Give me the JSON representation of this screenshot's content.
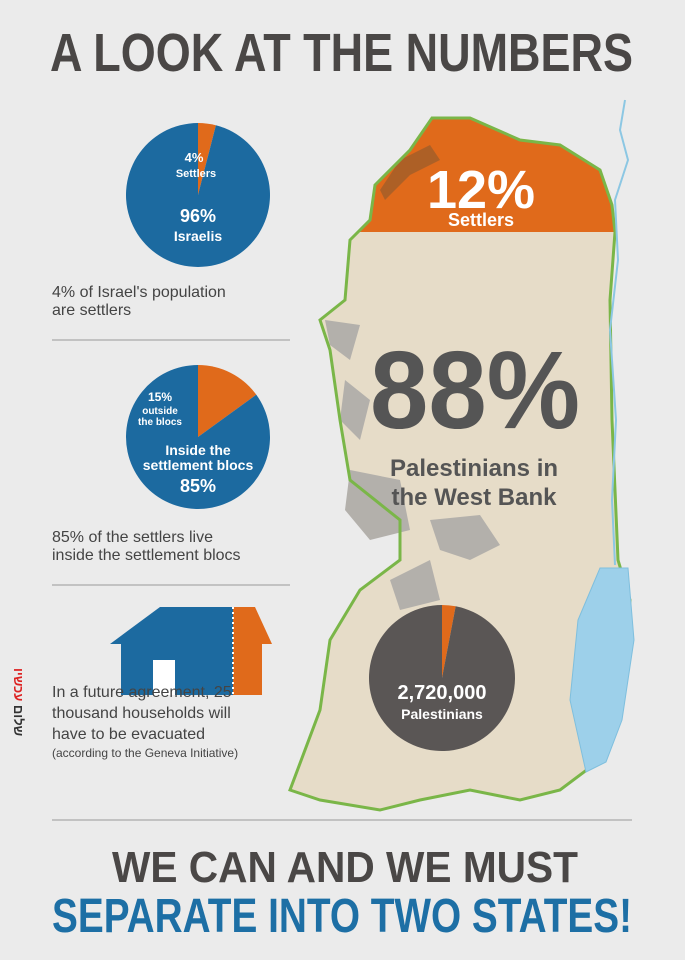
{
  "title": "A LOOK AT THE NUMBERS",
  "pie1": {
    "segments": [
      {
        "label": "Settlers",
        "value": 4,
        "value_label": "4%",
        "color": "#e06a1b"
      },
      {
        "label": "Israelis",
        "value": 96,
        "value_label": "96%",
        "color": "#1c6aa0"
      }
    ],
    "caption": [
      "4% of Israel's population",
      "are settlers"
    ]
  },
  "pie2": {
    "segments": [
      {
        "label": [
          "outside",
          "the blocs"
        ],
        "value": 15,
        "value_label": "15%",
        "color": "#e06a1b"
      },
      {
        "label": [
          "Inside the",
          "settlement blocs"
        ],
        "value": 85,
        "value_label": "85%",
        "color": "#1c6aa0"
      }
    ],
    "caption": [
      "85% of the settlers live",
      "inside the settlement blocs"
    ]
  },
  "house": {
    "caption": [
      "In a future agreement, 25",
      "thousand households will",
      "have to be evacuated"
    ],
    "note": "(according to the Geneva Initiative)"
  },
  "map": {
    "top": {
      "value": 12,
      "value_label": "12%",
      "label": "Settlers"
    },
    "main": {
      "value": 88,
      "value_label": "88%",
      "label": [
        "Palestinians in",
        "the West Bank"
      ]
    },
    "pie": {
      "segments": [
        {
          "value": 3,
          "color": "#e06a1b"
        },
        {
          "value": 97,
          "color": "#5a5655"
        }
      ],
      "total": "2,720,000",
      "label": "Palestinians"
    }
  },
  "logo": {
    "word1": "שלום",
    "word2": "עכשיו"
  },
  "footer": {
    "line1": "WE CAN AND WE MUST",
    "line2": "SEPARATE INTO TWO STATES!"
  }
}
